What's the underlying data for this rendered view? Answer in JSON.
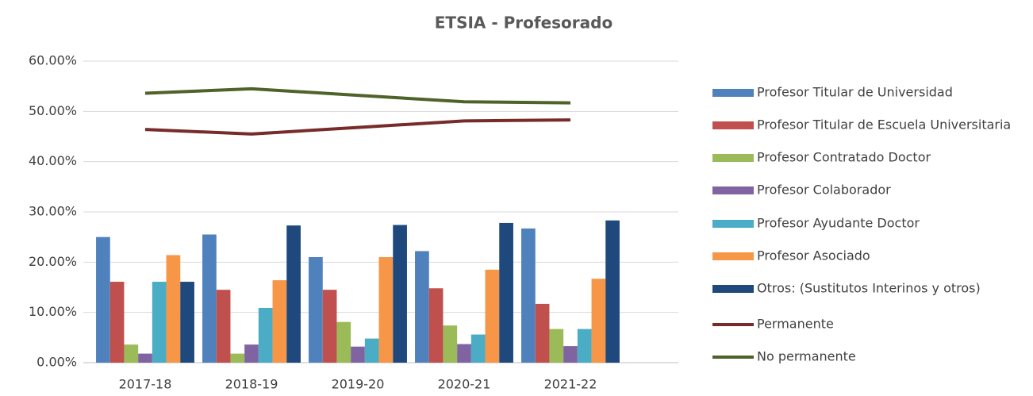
{
  "chart_data": {
    "type": "bar",
    "title": "ETSIA - Profesorado",
    "categories": [
      "2017-18",
      "2018-19",
      "2019-20",
      "2020-21",
      "2021-22"
    ],
    "series": [
      {
        "name": "Profesor Titular de Universidad",
        "color": "#4f81bd",
        "values": [
          25,
          25.5,
          21,
          22.2,
          26.7
        ]
      },
      {
        "name": "Profesor Titular de Escuela Universitaria",
        "color": "#c0504d",
        "values": [
          16.1,
          14.5,
          14.5,
          14.8,
          11.7
        ]
      },
      {
        "name": "Profesor Contratado Doctor",
        "color": "#9bbb59",
        "values": [
          3.6,
          1.8,
          8.1,
          7.4,
          6.7
        ]
      },
      {
        "name": "Profesor Colaborador",
        "color": "#8064a2",
        "values": [
          1.8,
          3.6,
          3.2,
          3.7,
          3.3
        ]
      },
      {
        "name": "Profesor Ayudante Doctor",
        "color": "#4bacc6",
        "values": [
          16.1,
          10.9,
          4.8,
          5.6,
          6.7
        ]
      },
      {
        "name": "Profesor Asociado",
        "color": "#f79646",
        "values": [
          21.4,
          16.4,
          21,
          18.5,
          16.7
        ]
      },
      {
        "name": "Otros: (Sustitutos Interinos y otros)",
        "color": "#1f497d",
        "values": [
          16.1,
          27.3,
          27.4,
          27.8,
          28.3
        ]
      },
      {
        "name": "Permanente",
        "color": "#772c2a",
        "type": "line",
        "values": [
          46.4,
          45.5,
          46.8,
          48.1,
          48.3
        ]
      },
      {
        "name": "No permanente",
        "color": "#4f6228",
        "type": "line",
        "values": [
          53.6,
          54.5,
          53.2,
          51.9,
          51.7
        ]
      }
    ],
    "ylim": [
      0,
      60
    ],
    "yticks": [
      {
        "value": 0,
        "label": "0.00%"
      },
      {
        "value": 10,
        "label": "10.00%"
      },
      {
        "value": 20,
        "label": "20.00%"
      },
      {
        "value": 30,
        "label": "30.00%"
      },
      {
        "value": 40,
        "label": "40.00%"
      },
      {
        "value": 50,
        "label": "50.00%"
      },
      {
        "value": 60,
        "label": "60.00%"
      }
    ],
    "grid": true,
    "legend": "right"
  }
}
